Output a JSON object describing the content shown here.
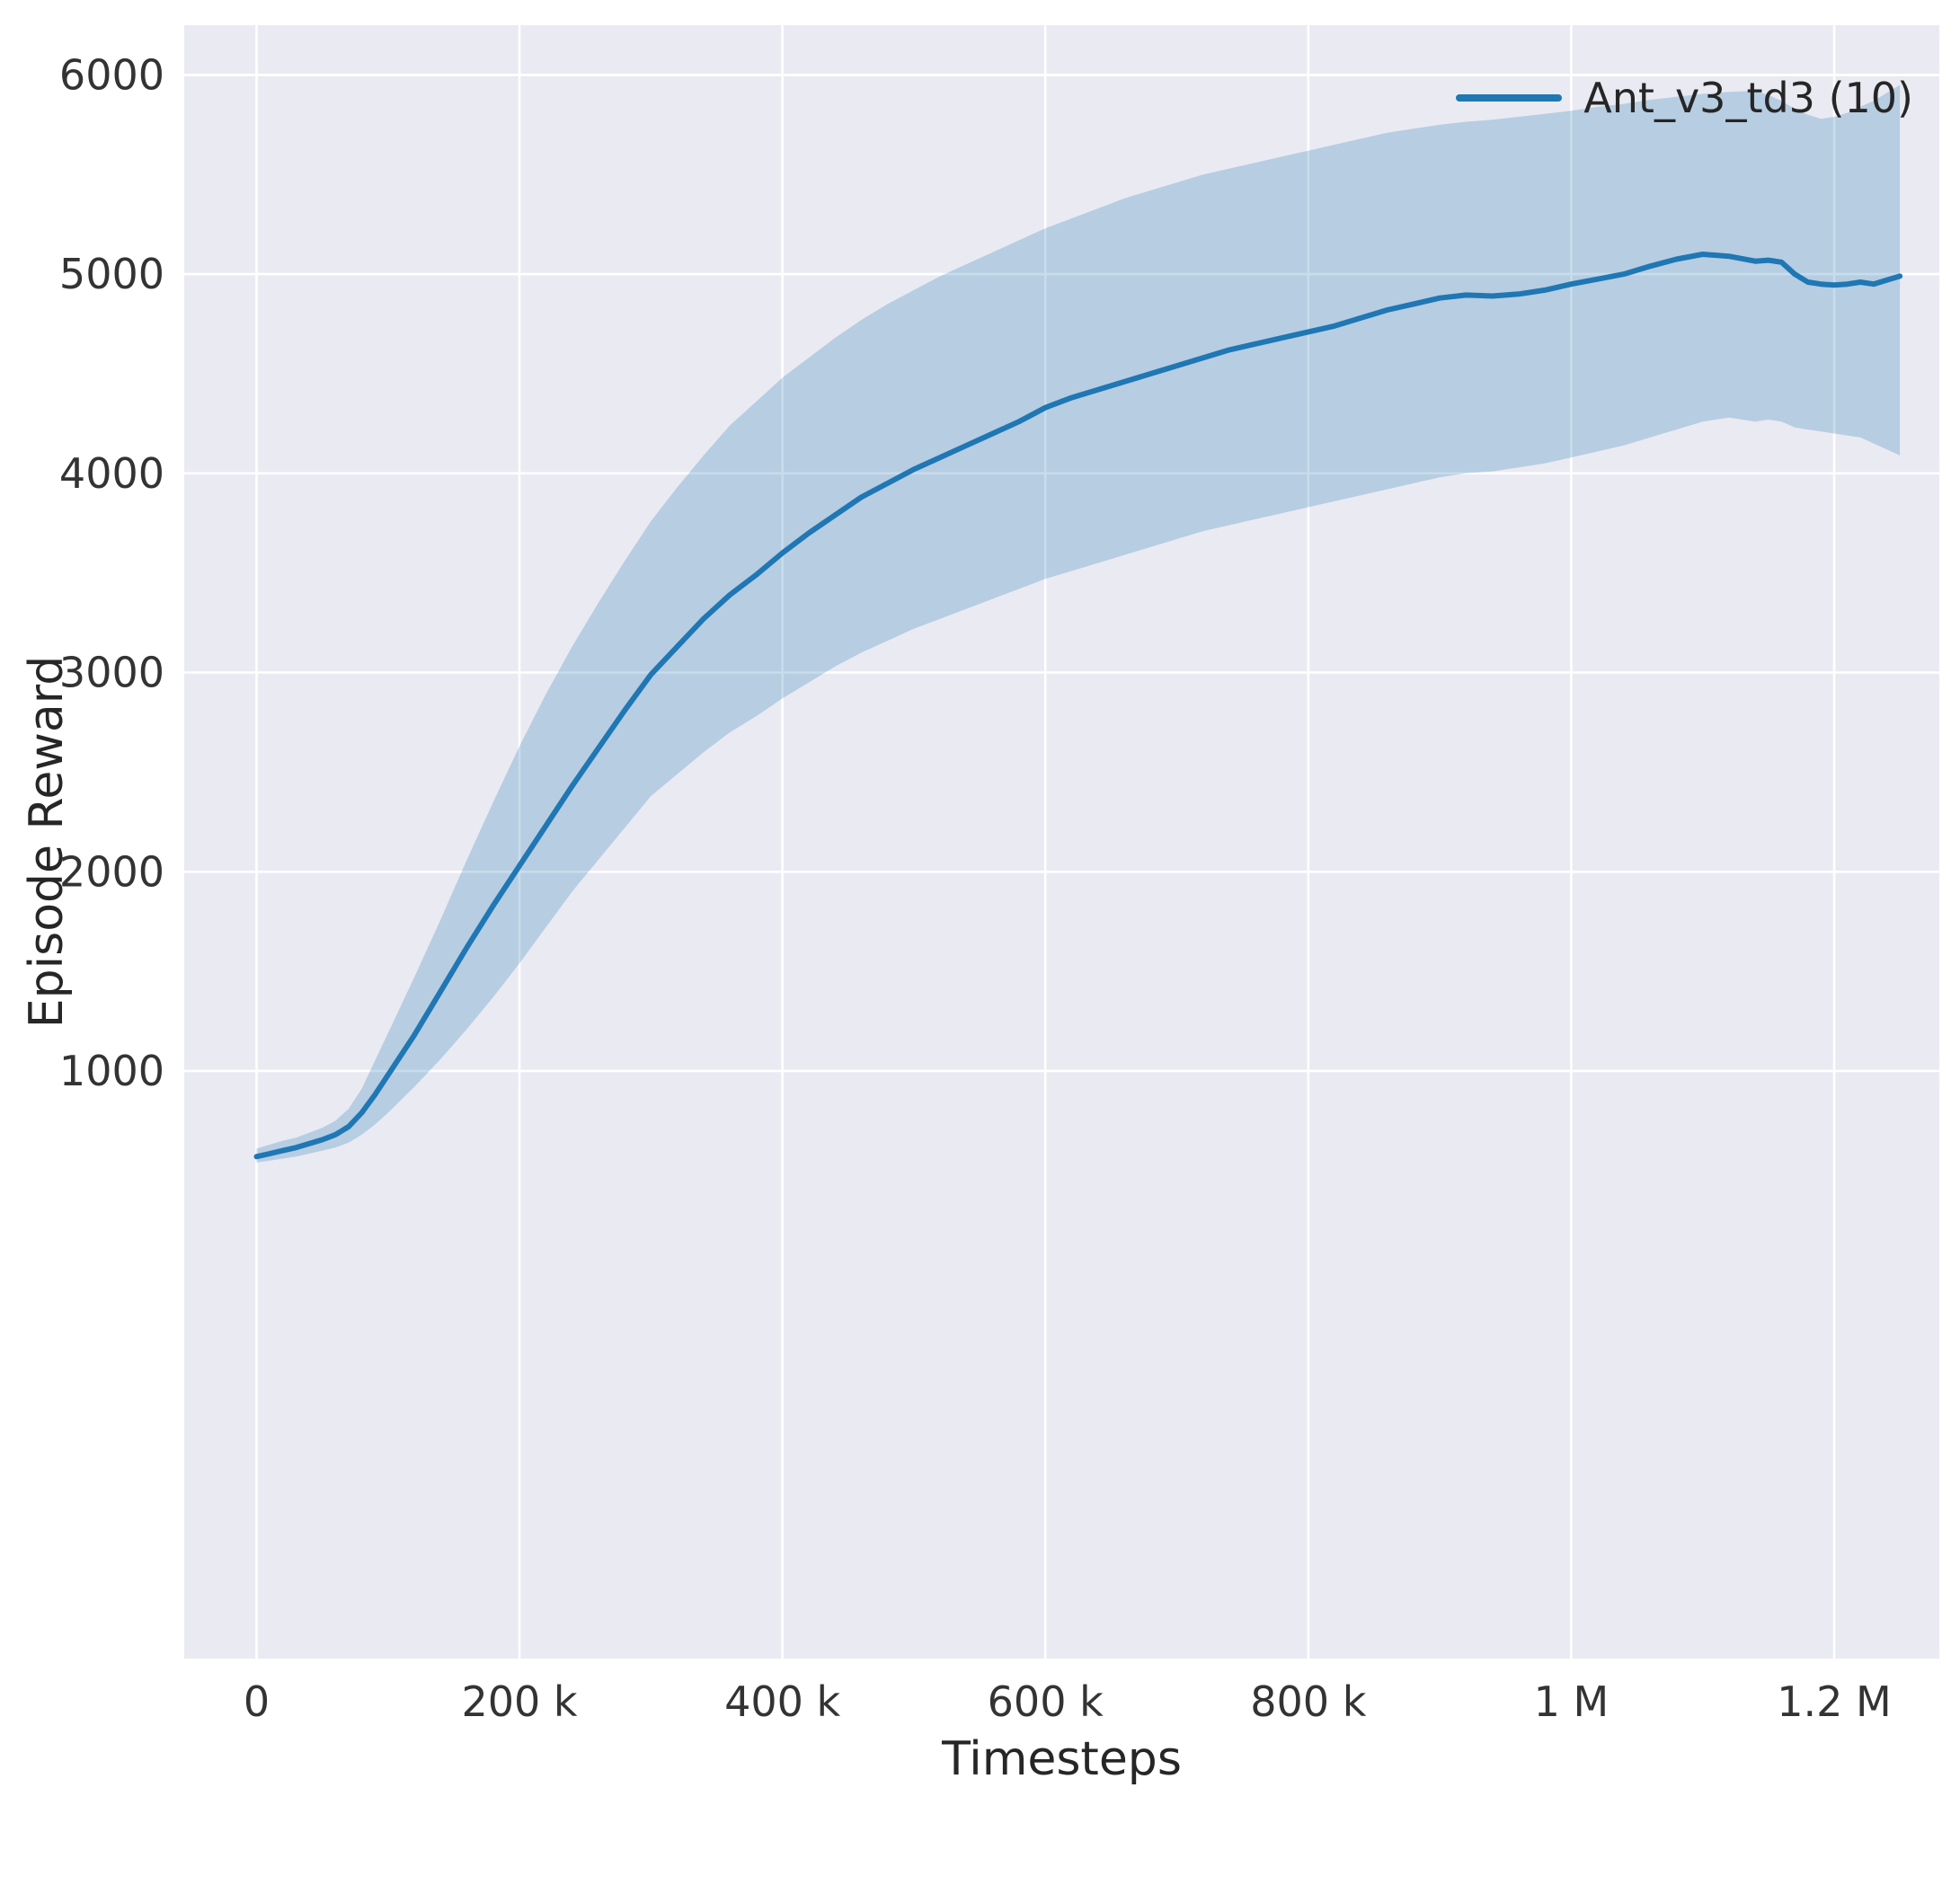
{
  "figure": {
    "background": "#ffffff",
    "axes_background": "#eaeaf2",
    "grid_color": "#ffffff",
    "text_color": "#262626",
    "tick_color": "#333333"
  },
  "chart_data": {
    "type": "line",
    "title": "",
    "xlabel": "Timesteps",
    "ylabel": "Episode Reward",
    "grid": true,
    "legend_position": "upper right",
    "legend": [
      {
        "label": "Ant_v3_td3 (10)",
        "color": "#1f77b4"
      }
    ],
    "xlim": [
      -55000,
      1280000
    ],
    "ylim": [
      -1950,
      6250
    ],
    "xticks": [
      {
        "value": 0,
        "label": "0"
      },
      {
        "value": 200000,
        "label": "200 k"
      },
      {
        "value": 400000,
        "label": "400 k"
      },
      {
        "value": 600000,
        "label": "600 k"
      },
      {
        "value": 800000,
        "label": "800 k"
      },
      {
        "value": 1000000,
        "label": "1 M"
      },
      {
        "value": 1200000,
        "label": "1.2 M"
      }
    ],
    "yticks": [
      {
        "value": 1000,
        "label": "1000"
      },
      {
        "value": 2000,
        "label": "2000"
      },
      {
        "value": 3000,
        "label": "3000"
      },
      {
        "value": 4000,
        "label": "4000"
      },
      {
        "value": 5000,
        "label": "5000"
      },
      {
        "value": 6000,
        "label": "6000"
      }
    ],
    "series": [
      {
        "name": "Ant_v3_td3 (10)",
        "color": "#1f77b4",
        "line_width": 6,
        "band_opacity": 0.25,
        "x": [
          0,
          10000,
          20000,
          30000,
          40000,
          50000,
          60000,
          70000,
          80000,
          90000,
          100000,
          120000,
          140000,
          160000,
          180000,
          200000,
          220000,
          240000,
          260000,
          280000,
          300000,
          320000,
          340000,
          360000,
          380000,
          400000,
          420000,
          440000,
          460000,
          480000,
          500000,
          520000,
          540000,
          560000,
          580000,
          600000,
          620000,
          640000,
          660000,
          680000,
          700000,
          720000,
          740000,
          760000,
          780000,
          800000,
          820000,
          840000,
          860000,
          880000,
          900000,
          920000,
          940000,
          960000,
          980000,
          1000000,
          1020000,
          1040000,
          1060000,
          1080000,
          1100000,
          1120000,
          1140000,
          1150000,
          1160000,
          1170000,
          1180000,
          1190000,
          1200000,
          1210000,
          1220000,
          1230000,
          1240000,
          1250000
        ],
        "mean": [
          570,
          585,
          600,
          615,
          635,
          655,
          680,
          720,
          790,
          880,
          980,
          1180,
          1400,
          1620,
          1830,
          2030,
          2230,
          2430,
          2620,
          2810,
          2990,
          3130,
          3270,
          3390,
          3490,
          3600,
          3700,
          3790,
          3880,
          3950,
          4020,
          4080,
          4140,
          4200,
          4260,
          4330,
          4380,
          4420,
          4460,
          4500,
          4540,
          4580,
          4620,
          4650,
          4680,
          4710,
          4740,
          4780,
          4820,
          4850,
          4880,
          4895,
          4890,
          4900,
          4920,
          4950,
          4975,
          5000,
          5040,
          5075,
          5100,
          5090,
          5065,
          5070,
          5060,
          5000,
          4960,
          4950,
          4945,
          4950,
          4960,
          4950,
          4970,
          4990
        ],
        "low": [
          540,
          550,
          560,
          570,
          585,
          600,
          615,
          640,
          680,
          730,
          790,
          920,
          1060,
          1210,
          1370,
          1540,
          1720,
          1900,
          2060,
          2220,
          2380,
          2490,
          2600,
          2700,
          2780,
          2870,
          2950,
          3030,
          3100,
          3160,
          3220,
          3270,
          3320,
          3370,
          3420,
          3470,
          3510,
          3550,
          3590,
          3630,
          3670,
          3710,
          3740,
          3770,
          3800,
          3830,
          3860,
          3890,
          3920,
          3950,
          3980,
          4000,
          4010,
          4030,
          4050,
          4080,
          4110,
          4140,
          4180,
          4220,
          4260,
          4280,
          4260,
          4270,
          4260,
          4230,
          4220,
          4210,
          4200,
          4190,
          4180,
          4150,
          4120,
          4090
        ],
        "high": [
          610,
          630,
          650,
          665,
          690,
          715,
          750,
          810,
          910,
          1050,
          1190,
          1470,
          1760,
          2060,
          2350,
          2630,
          2890,
          3130,
          3350,
          3560,
          3760,
          3930,
          4090,
          4240,
          4360,
          4480,
          4580,
          4680,
          4770,
          4850,
          4920,
          4990,
          5050,
          5110,
          5170,
          5230,
          5280,
          5330,
          5380,
          5420,
          5460,
          5500,
          5530,
          5560,
          5590,
          5620,
          5650,
          5680,
          5710,
          5730,
          5750,
          5765,
          5775,
          5790,
          5805,
          5820,
          5840,
          5855,
          5875,
          5890,
          5905,
          5915,
          5920,
          5900,
          5870,
          5830,
          5800,
          5780,
          5790,
          5810,
          5840,
          5870,
          5910,
          5950
        ]
      }
    ]
  }
}
